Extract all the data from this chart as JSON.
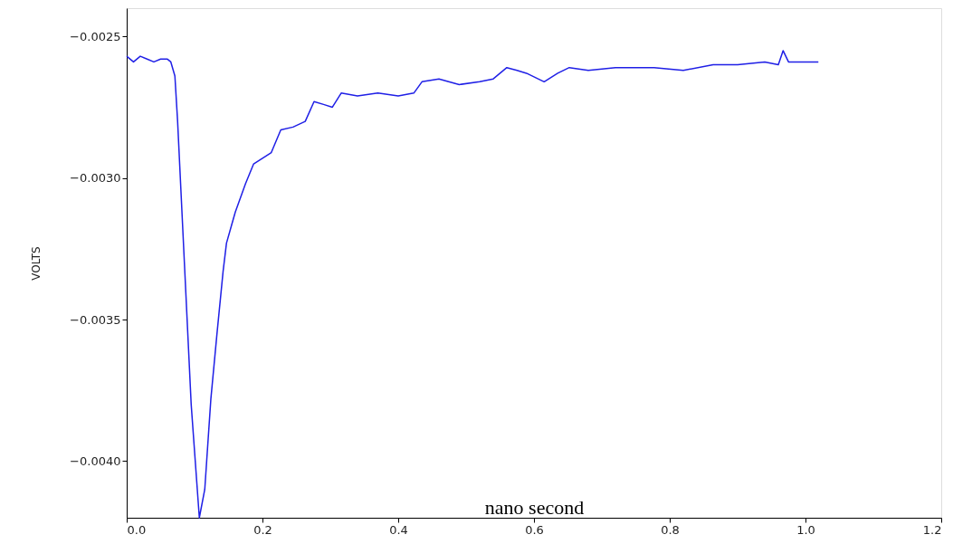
{
  "chart_data": {
    "type": "line",
    "xlabel": "nano second",
    "ylabel": "VOLTS",
    "x": [
      0.0,
      0.01,
      0.02,
      0.03,
      0.04,
      0.05,
      0.06,
      0.065,
      0.071,
      0.075,
      0.085,
      0.095,
      0.107,
      0.115,
      0.124,
      0.133,
      0.142,
      0.147,
      0.16,
      0.175,
      0.187,
      0.2,
      0.213,
      0.227,
      0.245,
      0.263,
      0.276,
      0.29,
      0.303,
      0.316,
      0.34,
      0.37,
      0.4,
      0.423,
      0.435,
      0.46,
      0.49,
      0.52,
      0.54,
      0.56,
      0.575,
      0.589,
      0.615,
      0.635,
      0.652,
      0.68,
      0.72,
      0.777,
      0.82,
      0.864,
      0.9,
      0.94,
      0.96,
      0.967,
      0.975,
      1.0,
      1.019
    ],
    "series": [
      {
        "color": "#1f1fe6",
        "values": [
          -0.00257,
          -0.00259,
          -0.00257,
          -0.00258,
          -0.00259,
          -0.00258,
          -0.00258,
          -0.00259,
          -0.00264,
          -0.0028,
          -0.0033,
          -0.0038,
          -0.0042,
          -0.0041,
          -0.00378,
          -0.00355,
          -0.00333,
          -0.00323,
          -0.00312,
          -0.00302,
          -0.00295,
          -0.00293,
          -0.00291,
          -0.00283,
          -0.00282,
          -0.0028,
          -0.00273,
          -0.00274,
          -0.00275,
          -0.0027,
          -0.00271,
          -0.0027,
          -0.00271,
          -0.0027,
          -0.00266,
          -0.00265,
          -0.00267,
          -0.00266,
          -0.00265,
          -0.00261,
          -0.00262,
          -0.00263,
          -0.00266,
          -0.00263,
          -0.00261,
          -0.00262,
          -0.00261,
          -0.00261,
          -0.00262,
          -0.0026,
          -0.0026,
          -0.00259,
          -0.0026,
          -0.00255,
          -0.00259,
          -0.00259,
          -0.00259
        ]
      }
    ],
    "xlim": [
      0.0,
      1.2
    ],
    "ylim": [
      -0.0042,
      -0.0024
    ],
    "xticks": [
      {
        "value": 0.0,
        "label": "0.0"
      },
      {
        "value": 0.2,
        "label": "0.2"
      },
      {
        "value": 0.4,
        "label": "0.4"
      },
      {
        "value": 0.6,
        "label": "0.6"
      },
      {
        "value": 0.8,
        "label": "0.8"
      },
      {
        "value": 1.0,
        "label": "1.0"
      },
      {
        "value": 1.2,
        "label": "1.2"
      }
    ],
    "yticks": [
      {
        "value": -0.0025,
        "label": "−0.0025"
      },
      {
        "value": -0.003,
        "label": "−0.0030"
      },
      {
        "value": -0.0035,
        "label": "−0.0035"
      },
      {
        "value": -0.004,
        "label": "−0.0040"
      }
    ],
    "grid": false,
    "marker": "none",
    "line_style": "solid"
  }
}
